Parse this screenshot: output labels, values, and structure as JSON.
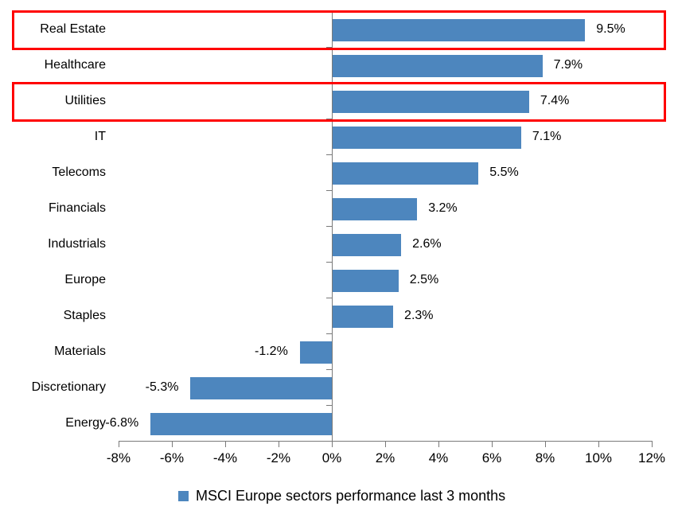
{
  "chart_data": {
    "type": "bar",
    "orientation": "horizontal",
    "title": "",
    "xlabel": "",
    "ylabel": "",
    "categories": [
      "Real Estate",
      "Healthcare",
      "Utilities",
      "IT",
      "Telecoms",
      "Financials",
      "Industrials",
      "Europe",
      "Staples",
      "Materials",
      "Discretionary",
      "Energy"
    ],
    "values": [
      9.5,
      7.9,
      7.4,
      7.1,
      5.5,
      3.2,
      2.6,
      2.5,
      2.3,
      -1.2,
      -5.3,
      -6.8
    ],
    "data_labels": [
      "9.5%",
      "7.9%",
      "7.4%",
      "7.1%",
      "5.5%",
      "3.2%",
      "2.6%",
      "2.5%",
      "2.3%",
      "-1.2%",
      "-5.3%",
      "-6.8%"
    ],
    "x_ticks": [
      "-8%",
      "-6%",
      "-4%",
      "-2%",
      "0%",
      "2%",
      "4%",
      "6%",
      "8%",
      "10%",
      "12%"
    ],
    "x_tick_values": [
      -8,
      -6,
      -4,
      -2,
      0,
      2,
      4,
      6,
      8,
      10,
      12
    ],
    "xlim": [
      -8,
      12
    ],
    "grid": false,
    "legend": "MSCI Europe sectors performance last 3 months",
    "legend_position": "bottom-center",
    "highlighted_categories": [
      "Real Estate",
      "Utilities"
    ],
    "colors": {
      "bar": "#4D86BE",
      "highlight_box": "#FF0000",
      "axis": "#7A7A7A",
      "text": "#000000",
      "background": "#FFFFFF"
    }
  }
}
